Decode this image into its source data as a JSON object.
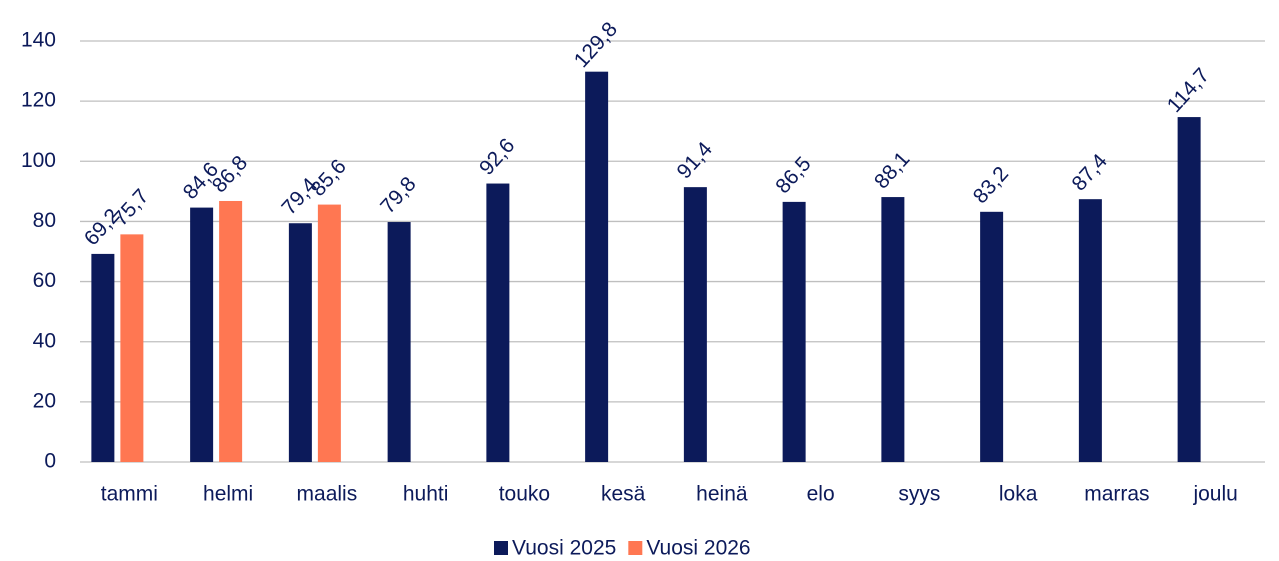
{
  "chart_data": {
    "type": "bar",
    "categories": [
      "tammi",
      "helmi",
      "maalis",
      "huhti",
      "touko",
      "kesä",
      "heinä",
      "elo",
      "syys",
      "loka",
      "marras",
      "joulu"
    ],
    "series": [
      {
        "name": "Vuosi 2025",
        "color": "#0c1a5a",
        "values": [
          69.2,
          84.6,
          79.4,
          79.8,
          92.6,
          129.8,
          91.4,
          86.5,
          88.1,
          83.2,
          87.4,
          114.7
        ],
        "value_labels": [
          "69,2",
          "84,6",
          "79,4",
          "79,8",
          "92,6",
          "129,8",
          "91,4",
          "86,5",
          "88,1",
          "83,2",
          "87,4",
          "114,7"
        ]
      },
      {
        "name": "Vuosi 2026",
        "color": "#ff7752",
        "values": [
          75.7,
          86.8,
          85.6,
          null,
          null,
          null,
          null,
          null,
          null,
          null,
          null,
          null
        ],
        "value_labels": [
          "75,7",
          "86,8",
          "85,6",
          null,
          null,
          null,
          null,
          null,
          null,
          null,
          null,
          null
        ]
      }
    ],
    "ylim": [
      0,
      140
    ],
    "yticks": [
      0,
      20,
      40,
      60,
      80,
      100,
      120,
      140
    ],
    "grid": true,
    "legend": "bottom"
  }
}
